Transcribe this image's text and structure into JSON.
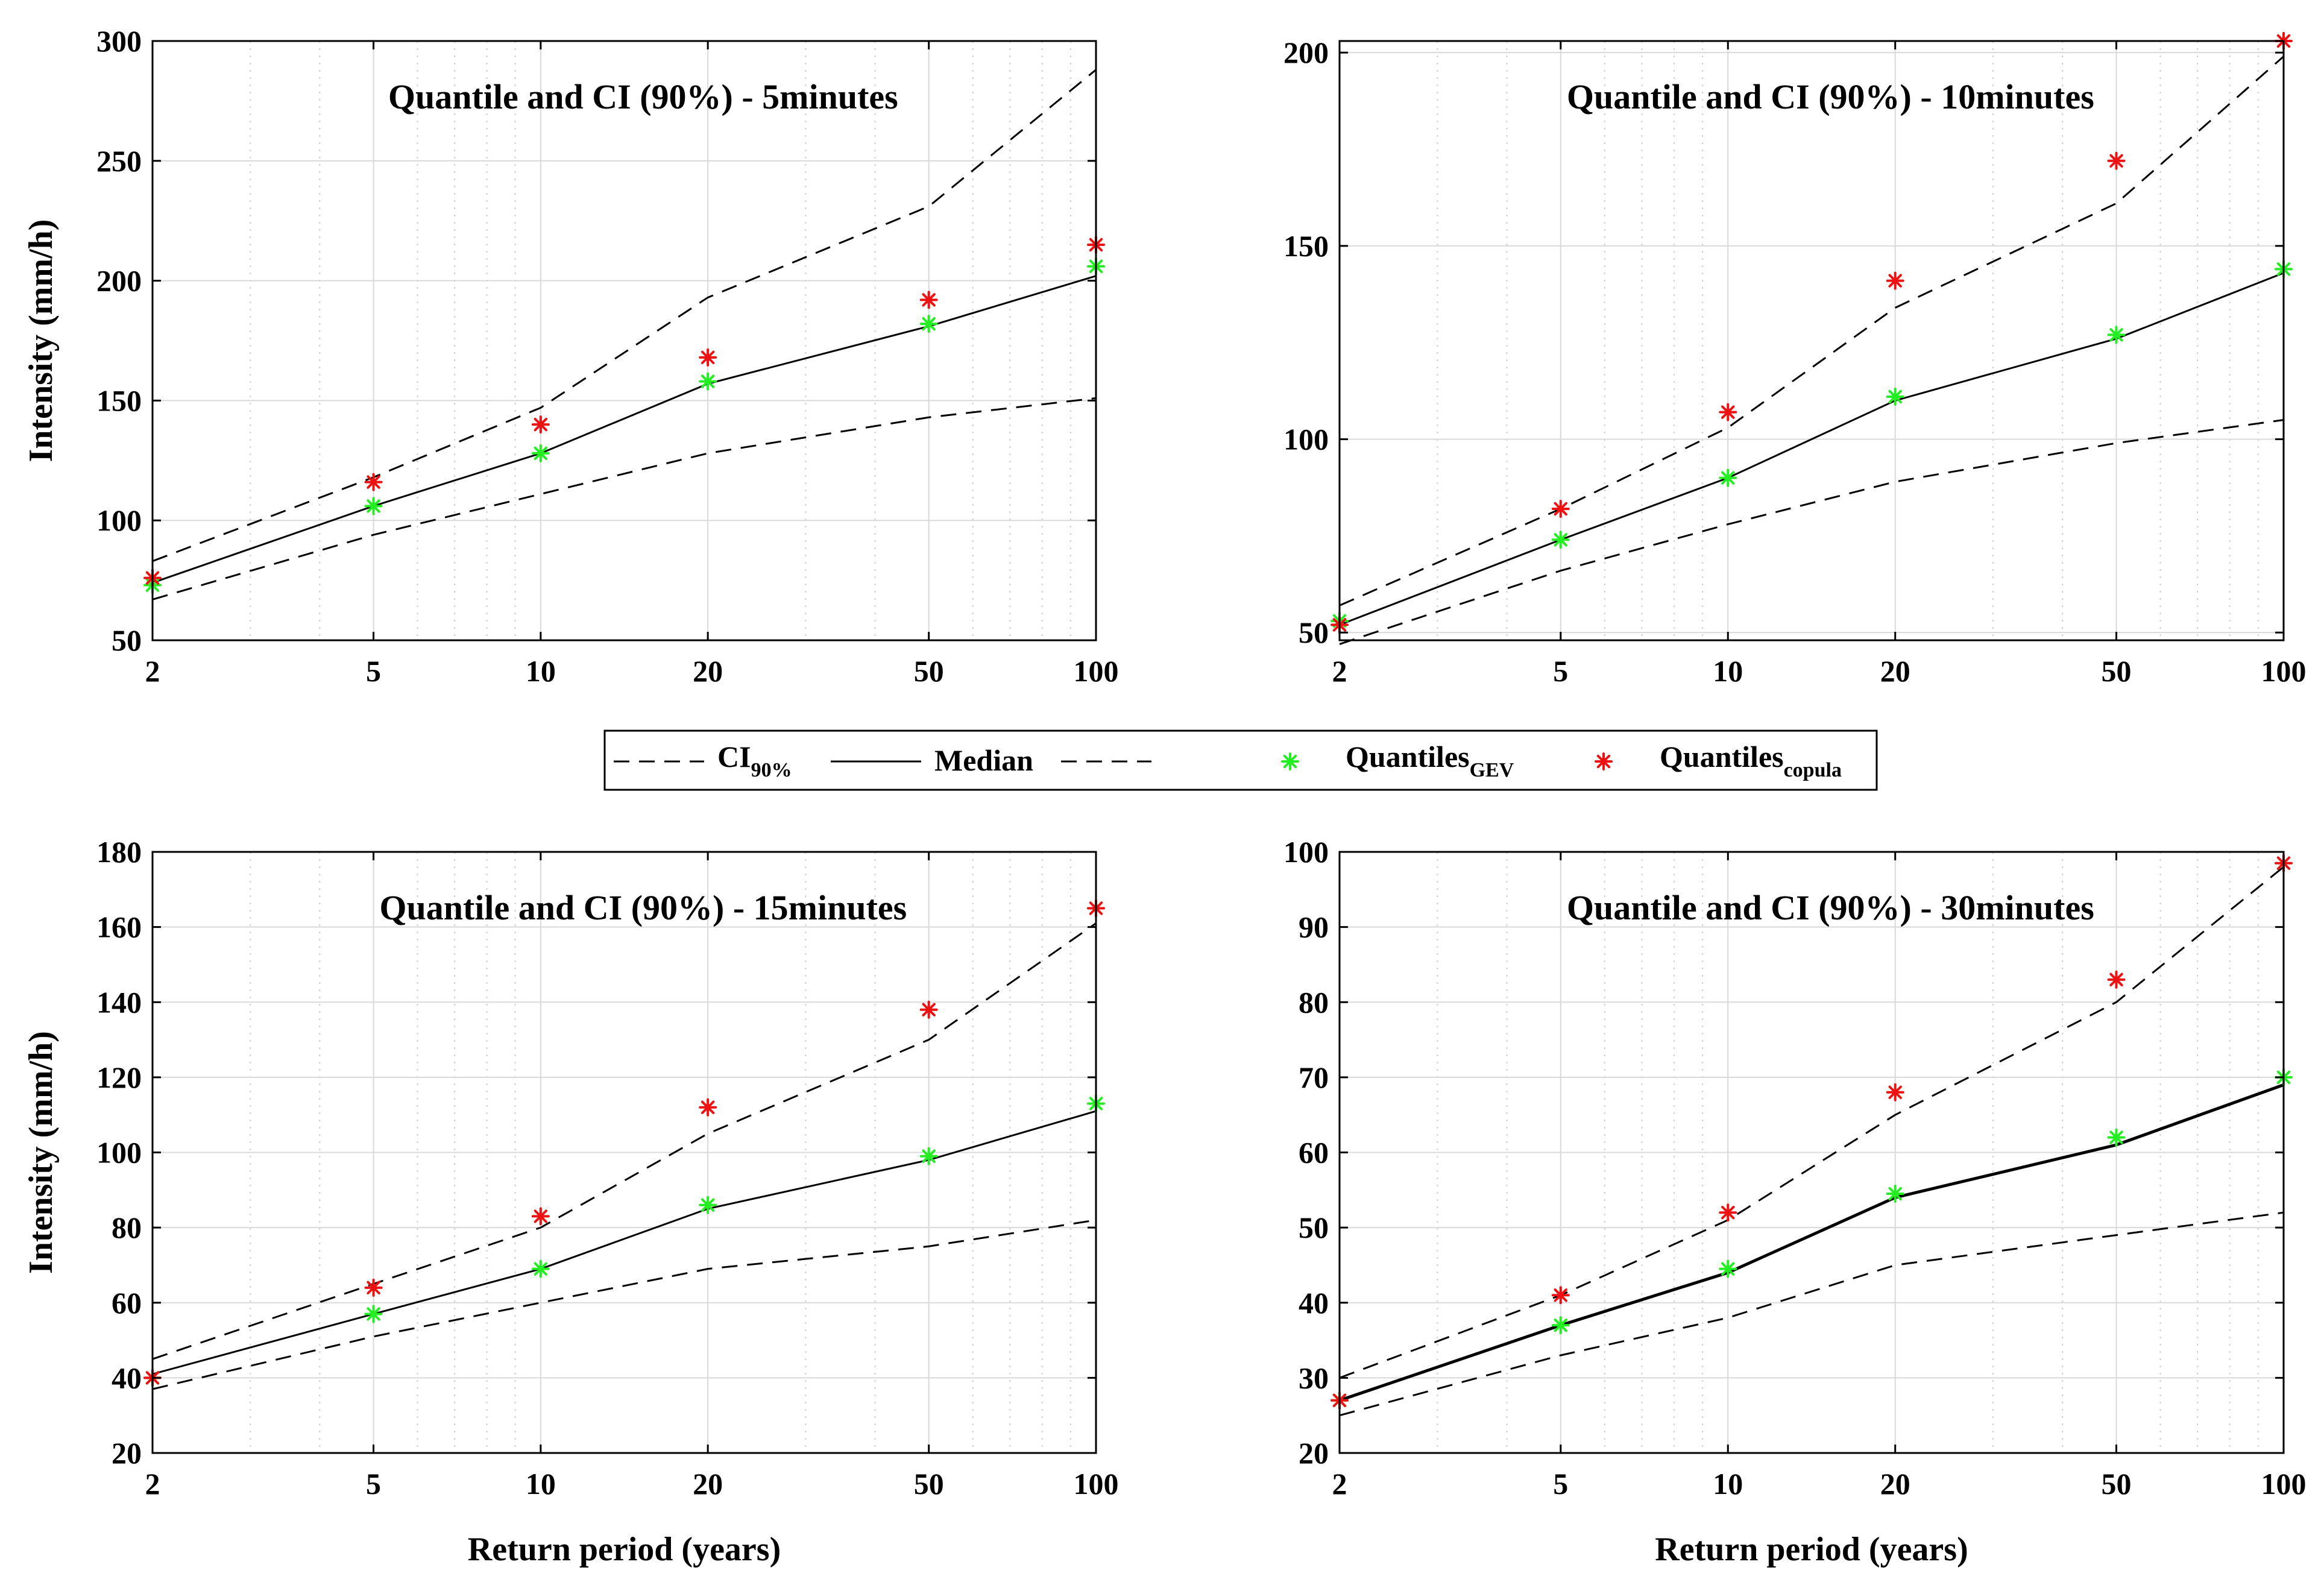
{
  "figure": {
    "legend": {
      "ci_label": "CI",
      "ci_sub": "90%",
      "median_label": "Median",
      "gev_label": "Quantiles",
      "gev_sub": "GEV",
      "copula_label": "Quantiles",
      "copula_sub": "copula"
    },
    "colors": {
      "gev": "#22ee22",
      "copula": "#ee1111",
      "line": "#000000",
      "grid": "#d9d9d9"
    }
  },
  "chart_data": [
    {
      "type": "line",
      "title": "Quantile and CI (90%) - 5minutes",
      "xlabel": "",
      "ylabel": "Intensity (mm/h)",
      "xscale": "log",
      "xlim": [
        2,
        100
      ],
      "ylim": [
        50,
        300
      ],
      "xticks": [
        2,
        5,
        10,
        20,
        50,
        100
      ],
      "yticks": [
        50,
        100,
        150,
        200,
        250,
        300
      ],
      "x": [
        2,
        5,
        10,
        20,
        50,
        100
      ],
      "series": [
        {
          "name": "CI upper",
          "style": "dashed",
          "values": [
            83,
            118,
            147,
            193,
            231,
            288
          ]
        },
        {
          "name": "Median",
          "style": "solid",
          "values": [
            74,
            106,
            128,
            157,
            181,
            202
          ]
        },
        {
          "name": "CI lower",
          "style": "dashed",
          "values": [
            67,
            94,
            111,
            128,
            143,
            151
          ]
        },
        {
          "name": "Quantiles GEV",
          "style": "marker",
          "values": [
            73,
            106,
            128,
            158,
            182,
            206
          ]
        },
        {
          "name": "Quantiles copula",
          "style": "marker",
          "values": [
            76,
            116,
            140,
            168,
            192,
            215
          ]
        }
      ]
    },
    {
      "type": "line",
      "title": "Quantile and CI (90%) - 10minutes",
      "xlabel": "",
      "ylabel": "",
      "xscale": "log",
      "xlim": [
        2,
        100
      ],
      "ylim": [
        48,
        203
      ],
      "xticks": [
        2,
        5,
        10,
        20,
        50,
        100
      ],
      "yticks": [
        50,
        100,
        150,
        200
      ],
      "x": [
        2,
        5,
        10,
        20,
        50,
        100
      ],
      "series": [
        {
          "name": "CI upper",
          "style": "dashed",
          "values": [
            57,
            82,
            103,
            134,
            161,
            199
          ]
        },
        {
          "name": "Median",
          "style": "solid",
          "values": [
            52,
            74,
            90,
            110,
            126,
            143
          ]
        },
        {
          "name": "CI lower",
          "style": "dashed",
          "values": [
            47,
            66,
            78,
            89,
            99,
            105
          ]
        },
        {
          "name": "Quantiles GEV",
          "style": "marker",
          "values": [
            53,
            74,
            90,
            111,
            127,
            144
          ]
        },
        {
          "name": "Quantiles copula",
          "style": "marker",
          "values": [
            52,
            82,
            107,
            141,
            172,
            203
          ]
        }
      ]
    },
    {
      "type": "line",
      "title": "Quantile and CI (90%) - 15minutes",
      "xlabel": "Return period (years)",
      "ylabel": "Intensity (mm/h)",
      "xscale": "log",
      "xlim": [
        2,
        100
      ],
      "ylim": [
        20,
        180
      ],
      "xticks": [
        2,
        5,
        10,
        20,
        50,
        100
      ],
      "yticks": [
        20,
        40,
        60,
        80,
        100,
        120,
        140,
        160,
        180
      ],
      "x": [
        2,
        5,
        10,
        20,
        50,
        100
      ],
      "series": [
        {
          "name": "CI upper",
          "style": "dashed",
          "values": [
            45,
            65,
            80,
            105,
            130,
            161
          ]
        },
        {
          "name": "Median",
          "style": "solid",
          "values": [
            41,
            57,
            69,
            85,
            98,
            111
          ]
        },
        {
          "name": "CI lower",
          "style": "dashed",
          "values": [
            37,
            51,
            60,
            69,
            75,
            82
          ]
        },
        {
          "name": "Quantiles GEV",
          "style": "marker",
          "values": [
            40,
            57,
            69,
            86,
            99,
            113
          ]
        },
        {
          "name": "Quantiles copula",
          "style": "marker",
          "values": [
            40,
            64,
            83,
            112,
            138,
            165
          ]
        }
      ]
    },
    {
      "type": "line",
      "title": "Quantile and CI (90%) - 30minutes",
      "xlabel": "Return period (years)",
      "ylabel": "",
      "xscale": "log",
      "xlim": [
        2,
        100
      ],
      "ylim": [
        20,
        100
      ],
      "xticks": [
        2,
        5,
        10,
        20,
        50,
        100
      ],
      "yticks": [
        20,
        30,
        40,
        50,
        60,
        70,
        80,
        90,
        100
      ],
      "x": [
        2,
        5,
        10,
        20,
        50,
        100
      ],
      "series": [
        {
          "name": "CI upper",
          "style": "dashed",
          "values": [
            30,
            41,
            51,
            65,
            80,
            98
          ]
        },
        {
          "name": "Median",
          "style": "solid",
          "values": [
            27,
            37,
            44,
            54,
            61,
            69
          ]
        },
        {
          "name": "CI lower",
          "style": "dashed",
          "values": [
            25,
            33,
            38,
            45,
            49,
            52
          ]
        },
        {
          "name": "Quantiles GEV",
          "style": "marker",
          "values": [
            27,
            37,
            44.5,
            54.5,
            62,
            70
          ]
        },
        {
          "name": "Quantiles copula",
          "style": "marker",
          "values": [
            27,
            41,
            52,
            68,
            83,
            98.5
          ]
        }
      ]
    }
  ]
}
